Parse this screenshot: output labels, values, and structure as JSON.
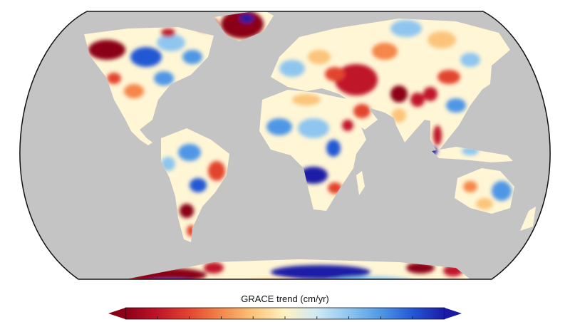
{
  "colorbar": {
    "label": "GRACE trend (cm/yr)",
    "colors": [
      "#8b0015",
      "#c0142a",
      "#e2452f",
      "#f4874a",
      "#fbc47a",
      "#fff3c2",
      "#cfe9f5",
      "#8fc6ef",
      "#4f97e6",
      "#2358d4",
      "#1a1aa6"
    ],
    "extend": "both",
    "ticks": 10
  },
  "map": {
    "projection": "Robinson",
    "ocean_color": "#c4c4c4",
    "outline_color": "#111111",
    "land_base_color": "#fff6d6"
  }
}
